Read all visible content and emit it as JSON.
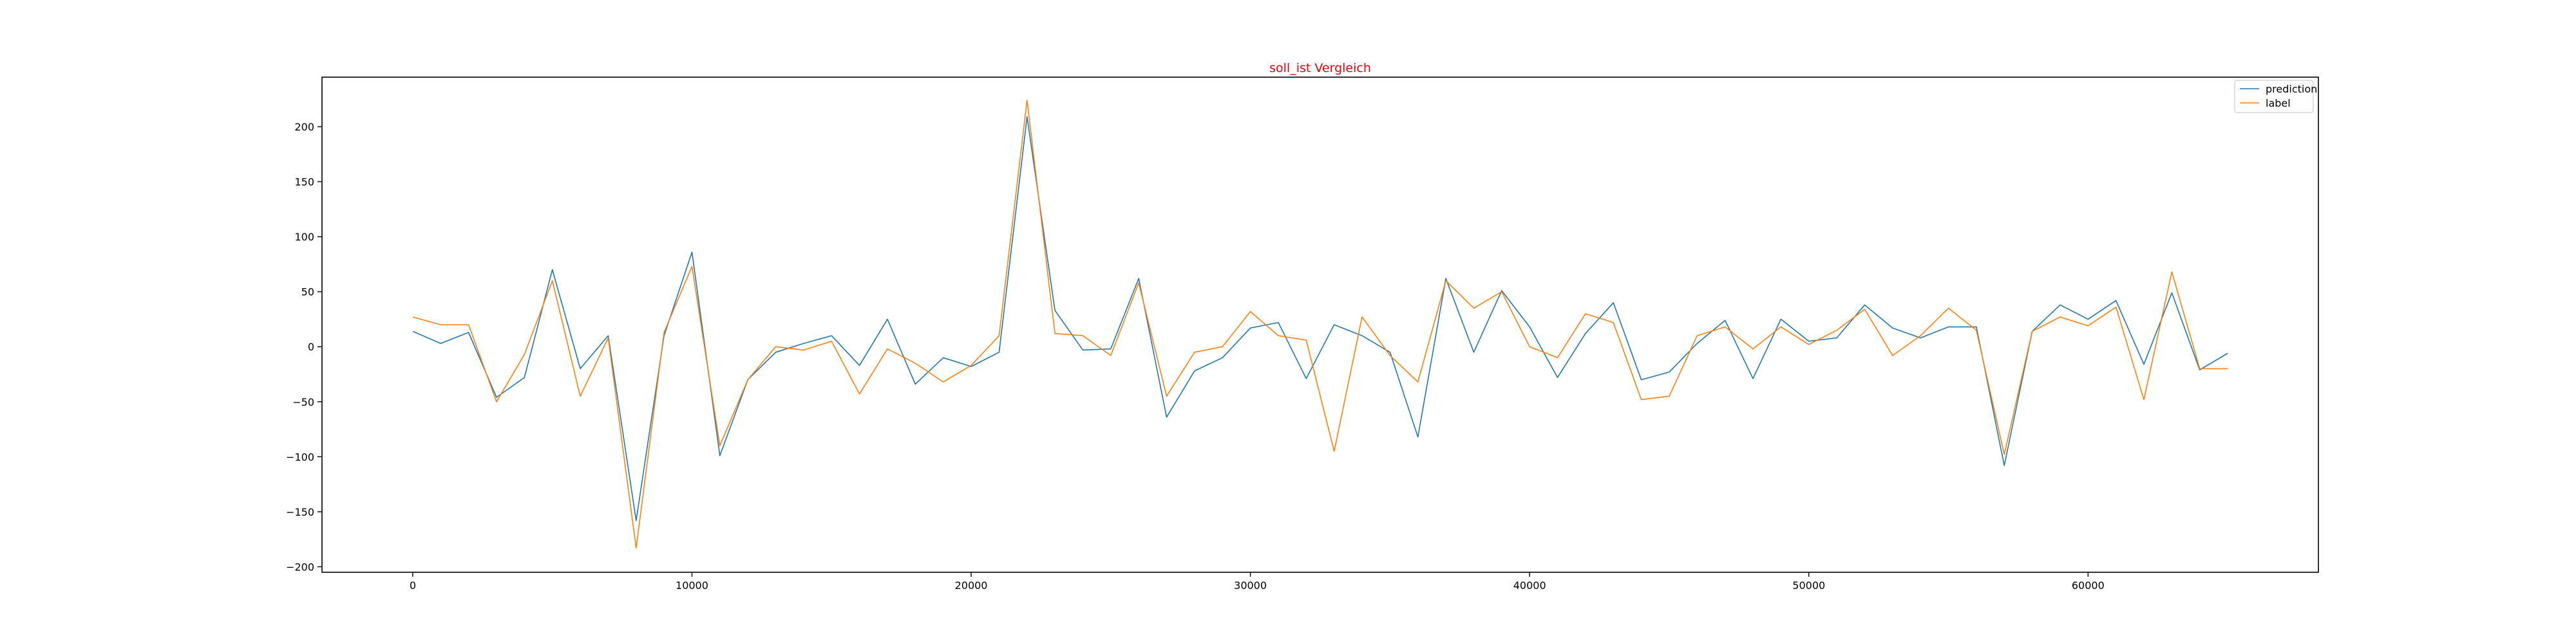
{
  "chart_data": {
    "type": "line",
    "title": "soll_ist Vergleich",
    "title_color": "#e8000b",
    "xlabel": "",
    "ylabel": "",
    "xlim": [
      -3250,
      68250
    ],
    "ylim": [
      -205,
      245
    ],
    "x_ticks": [
      0,
      10000,
      20000,
      30000,
      40000,
      50000,
      60000
    ],
    "y_ticks": [
      -200,
      -150,
      -100,
      -50,
      0,
      50,
      100,
      150,
      200
    ],
    "grid": false,
    "legend_position": "top-right",
    "x": [
      0,
      1000,
      2000,
      3000,
      4000,
      5000,
      6000,
      7000,
      8000,
      9000,
      10000,
      11000,
      12000,
      13000,
      14000,
      15000,
      16000,
      17000,
      18000,
      19000,
      20000,
      21000,
      22000,
      23000,
      24000,
      25000,
      26000,
      27000,
      28000,
      29000,
      30000,
      31000,
      32000,
      33000,
      34000,
      35000,
      36000,
      37000,
      38000,
      39000,
      40000,
      41000,
      42000,
      43000,
      44000,
      45000,
      46000,
      47000,
      48000,
      49000,
      50000,
      51000,
      52000,
      53000,
      54000,
      55000,
      56000,
      57000,
      58000,
      59000,
      60000,
      61000,
      62000,
      63000,
      64000,
      65000
    ],
    "series": [
      {
        "name": "prediction",
        "color": "#1f77b4",
        "values": [
          14,
          3,
          13,
          -46,
          -28,
          70,
          -20,
          10,
          -158,
          10,
          86,
          -99,
          -30,
          -5,
          3,
          10,
          -17,
          25,
          -34,
          -10,
          -18,
          -5,
          209,
          33,
          -3,
          -2,
          62,
          -64,
          -22,
          -10,
          17,
          22,
          -29,
          20,
          10,
          -5,
          -82,
          62,
          -5,
          51,
          18,
          -28,
          12,
          40,
          -30,
          -23,
          3,
          24,
          -29,
          25,
          5,
          8,
          38,
          17,
          8,
          18,
          18,
          -108,
          14,
          38,
          25,
          42,
          -16,
          49,
          -21,
          -6
        ]
      },
      {
        "name": "label",
        "color": "#ff7f0e",
        "values": [
          27,
          20,
          20,
          -50,
          -7,
          60,
          -45,
          8,
          -183,
          13,
          73,
          -90,
          -30,
          0,
          -3,
          5,
          -43,
          -2,
          -15,
          -32,
          -17,
          10,
          224,
          12,
          10,
          -8,
          58,
          -45,
          -5,
          0,
          32,
          10,
          6,
          -95,
          27,
          -8,
          -32,
          60,
          35,
          50,
          0,
          -10,
          30,
          22,
          -48,
          -45,
          10,
          18,
          -2,
          18,
          2,
          15,
          34,
          -8,
          10,
          35,
          15,
          -98,
          14,
          27,
          19,
          36,
          -48,
          68,
          -20,
          -20
        ]
      }
    ]
  }
}
